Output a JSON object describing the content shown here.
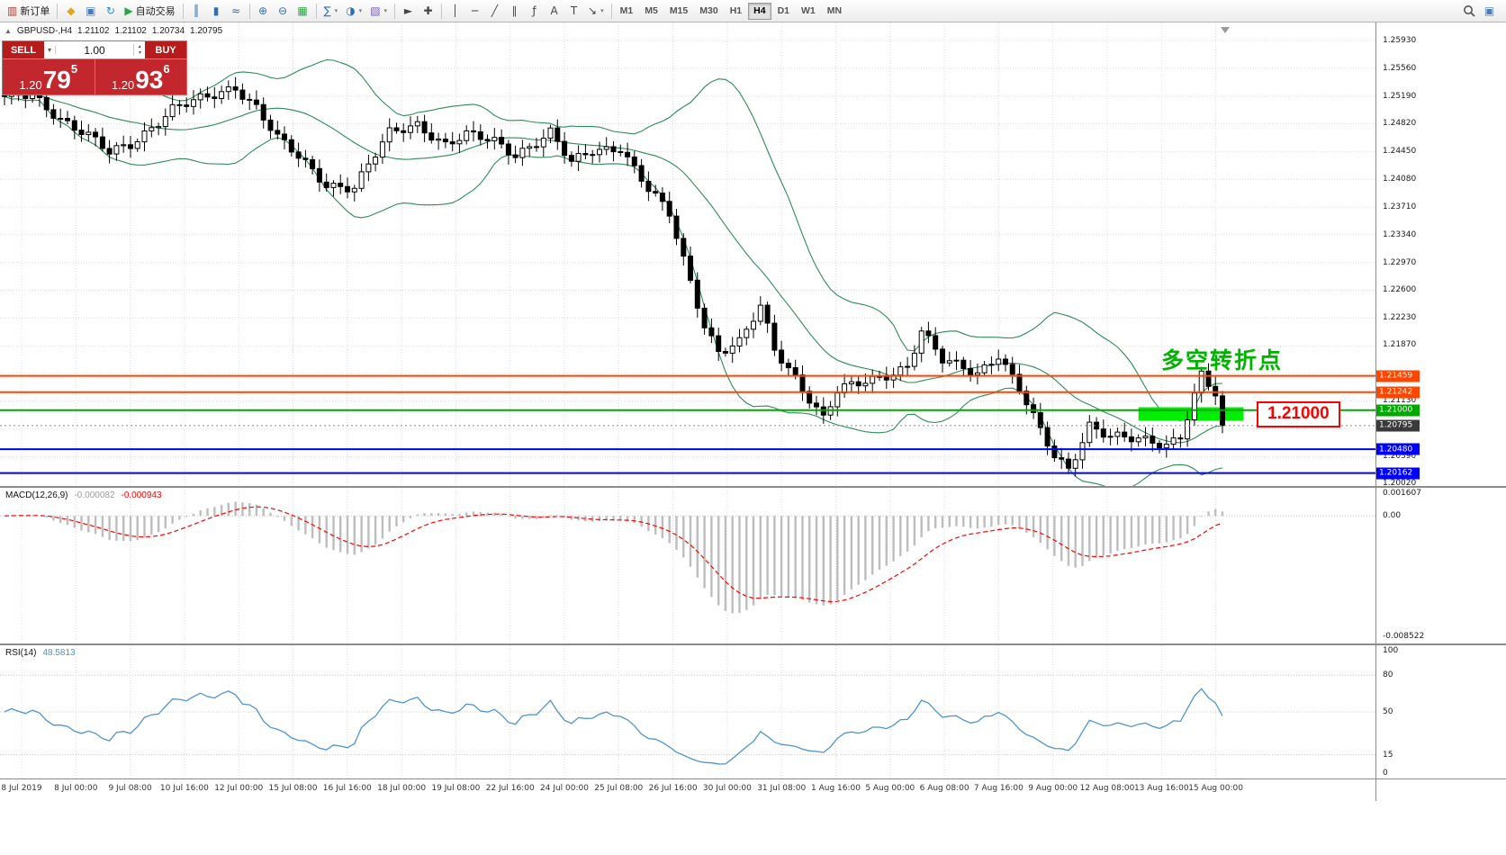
{
  "toolbar": {
    "items": [
      {
        "name": "new-order-button",
        "glyph": "▥",
        "glyph_color": "#B03A2E",
        "label": "新订单"
      },
      {
        "type": "sep"
      },
      {
        "name": "chart-profile-button",
        "glyph": "◆",
        "glyph_color": "#E2A51F"
      },
      {
        "name": "data-window-button",
        "glyph": "▣",
        "glyph_color": "#4A7AB8"
      },
      {
        "name": "refresh-button",
        "glyph": "↻",
        "glyph_color": "#2F86C8"
      },
      {
        "name": "autotrading-button",
        "glyph": "▶",
        "glyph_color": "#27A844",
        "label": "自动交易"
      },
      {
        "type": "sep"
      },
      {
        "name": "bar-chart-button",
        "glyph": "║",
        "glyph_color": "#2F6FB0"
      },
      {
        "name": "candlestick-chart-button",
        "glyph": "▮",
        "glyph_color": "#2F6FB0"
      },
      {
        "name": "line-chart-button",
        "glyph": "≈",
        "glyph_color": "#2F6FB0"
      },
      {
        "type": "sep"
      },
      {
        "name": "zoom-in-button",
        "glyph": "⊕",
        "glyph_color": "#2F6FB0"
      },
      {
        "name": "zoom-out-button",
        "glyph": "⊖",
        "glyph_color": "#2F6FB0"
      },
      {
        "name": "tile-windows-button",
        "glyph": "▦",
        "glyph_color": "#27A844"
      },
      {
        "type": "sep"
      },
      {
        "name": "indicators-button",
        "glyph": "∑",
        "glyph_color": "#2F6FB0",
        "dropdown": true
      },
      {
        "name": "periods-button",
        "glyph": "◑",
        "glyph_color": "#2F6FB0",
        "dropdown": true
      },
      {
        "name": "templates-button",
        "glyph": "▧",
        "glyph_color": "#7E57C2",
        "dropdown": true
      },
      {
        "type": "sep"
      },
      {
        "name": "cursor-button",
        "glyph": "►",
        "glyph_color": "#444444"
      },
      {
        "name": "crosshair-button",
        "glyph": "✚",
        "glyph_color": "#444444"
      },
      {
        "type": "sep"
      },
      {
        "name": "vertical-line-button",
        "glyph": "│",
        "glyph_color": "#444444"
      },
      {
        "name": "horizontal-line-button",
        "glyph": "─",
        "glyph_color": "#444444"
      },
      {
        "name": "trendline-button",
        "glyph": "╱",
        "glyph_color": "#444444"
      },
      {
        "name": "equidistant-channel-button",
        "glyph": "∥",
        "glyph_color": "#444444"
      },
      {
        "name": "fibonacci-button",
        "glyph": "ƒ",
        "glyph_color": "#444444"
      },
      {
        "name": "text-button",
        "glyph": "A",
        "glyph_color": "#444444"
      },
      {
        "name": "text-label-button",
        "glyph": "T",
        "glyph_color": "#444444"
      },
      {
        "name": "arrows-button",
        "glyph": "↘",
        "glyph_color": "#444444",
        "dropdown": true
      },
      {
        "type": "sep"
      }
    ],
    "timeframes": [
      "M1",
      "M5",
      "M15",
      "M30",
      "H1",
      "H4",
      "D1",
      "W1",
      "MN"
    ],
    "active_timeframe": "H4"
  },
  "chart_header": {
    "collapse_icon": "▲",
    "symbol": "GBPUSD-,H4",
    "open": "1.21102",
    "high": "1.21102",
    "low": "1.20734",
    "close": "1.20795"
  },
  "trade_panel": {
    "sell_label": "SELL",
    "buy_label": "BUY",
    "volume": "1.00",
    "sell_price_head": "1.20",
    "sell_price_big": "79",
    "sell_price_pip": "5",
    "buy_price_head": "1.20",
    "buy_price_big": "93",
    "buy_price_pip": "6"
  },
  "chart_data": {
    "type": "candlestick",
    "symbol": "GBPUSD-",
    "timeframe": "H4",
    "y_axis": {
      "visible_min": 1.2002,
      "visible_max": 1.2593,
      "tick_step": 0.0037,
      "tick_labels": [
        "1.25930",
        "1.25560",
        "1.25190",
        "1.24820",
        "1.24450",
        "1.24080",
        "1.23710",
        "1.23340",
        "1.22970",
        "1.22600",
        "1.22230",
        "1.21870",
        "1.21130",
        "1.20390",
        "1.20020"
      ]
    },
    "x_tick_labels": [
      "8 Jul 2019",
      "8 Jul 00:00",
      "9 Jul 08:00",
      "10 Jul 16:00",
      "12 Jul 00:00",
      "15 Jul 08:00",
      "16 Jul 16:00",
      "18 Jul 00:00",
      "19 Jul 08:00",
      "22 Jul 16:00",
      "24 Jul 00:00",
      "25 Jul 08:00",
      "26 Jul 16:00",
      "30 Jul 00:00",
      "31 Jul 08:00",
      "1 Aug 16:00",
      "5 Aug 00:00",
      "6 Aug 08:00",
      "7 Aug 16:00",
      "9 Aug 00:00",
      "12 Aug 08:00",
      "13 Aug 16:00",
      "15 Aug 00:00"
    ],
    "candle_count": 175,
    "price_keypoints": [
      [
        0,
        1.2515
      ],
      [
        4,
        1.2521
      ],
      [
        8,
        1.249
      ],
      [
        12,
        1.2465
      ],
      [
        15,
        1.2442
      ],
      [
        18,
        1.2455
      ],
      [
        24,
        1.2502
      ],
      [
        29,
        1.2516
      ],
      [
        33,
        1.2532
      ],
      [
        36,
        1.2505
      ],
      [
        39,
        1.2462
      ],
      [
        43,
        1.2428
      ],
      [
        46,
        1.2402
      ],
      [
        50,
        1.2398
      ],
      [
        55,
        1.2468
      ],
      [
        59,
        1.2482
      ],
      [
        63,
        1.2455
      ],
      [
        66,
        1.2466
      ],
      [
        70,
        1.2458
      ],
      [
        73,
        1.2442
      ],
      [
        78,
        1.247
      ],
      [
        81,
        1.2428
      ],
      [
        84,
        1.2446
      ],
      [
        88,
        1.2452
      ],
      [
        92,
        1.2394
      ],
      [
        95,
        1.236
      ],
      [
        97,
        1.23
      ],
      [
        100,
        1.2215
      ],
      [
        102,
        1.218
      ],
      [
        105,
        1.219
      ],
      [
        108,
        1.2236
      ],
      [
        110,
        1.218
      ],
      [
        113,
        1.2145
      ],
      [
        117,
        1.209
      ],
      [
        119,
        1.2125
      ],
      [
        124,
        1.214
      ],
      [
        129,
        1.216
      ],
      [
        131,
        1.2206
      ],
      [
        134,
        1.2165
      ],
      [
        139,
        1.215
      ],
      [
        142,
        1.2176
      ],
      [
        145,
        1.2128
      ],
      [
        148,
        1.207
      ],
      [
        150,
        1.2038
      ],
      [
        152,
        1.2022
      ],
      [
        155,
        1.2082
      ],
      [
        158,
        1.2065
      ],
      [
        161,
        1.206
      ],
      [
        166,
        1.2055
      ],
      [
        168,
        1.2068
      ],
      [
        171,
        1.2148
      ],
      [
        173,
        1.212
      ],
      [
        174,
        1.20795
      ]
    ],
    "bollinger": {
      "period": 20,
      "deviation": 2,
      "color": "#2E8B57"
    },
    "horizontal_lines": [
      {
        "price": 1.21459,
        "label": "1.21459",
        "color": "#FF4500"
      },
      {
        "price": 1.21242,
        "label": "1.21242",
        "color": "#FF4500"
      },
      {
        "price": 1.21,
        "label": "1.21000",
        "color": "#00A800"
      },
      {
        "price": 1.2048,
        "label": "1.20480",
        "color": "#0000FF"
      },
      {
        "price": 1.20162,
        "label": "1.20162",
        "color": "#0000FF"
      }
    ],
    "current_price": {
      "value": 1.20795,
      "label": "1.20795",
      "tag_color": "#3A3A3A"
    },
    "highlight_rect": {
      "start_index": 162,
      "end_index": 177,
      "price_top": 1.2104,
      "price_bottom": 1.2086,
      "color": "#00EE00"
    },
    "annotation": {
      "text": "多空转折点",
      "color": "#00B300"
    },
    "callout": {
      "text": "1.21000",
      "color": "#FF0000"
    },
    "macd": {
      "label": "MACD(12,26,9)",
      "fast": 12,
      "slow": 26,
      "signal": 9,
      "value": "-0.000082",
      "signal_value": "-0.000943",
      "axis_labels": [
        "0.001607",
        "0.00",
        "-0.008522"
      ],
      "hist_color": "#BDBDBD",
      "signal_color": "#FF0000"
    },
    "rsi": {
      "label": "RSI(14)",
      "period": 14,
      "value": "48.5813",
      "axis_labels": [
        "100",
        "80",
        "50",
        "15",
        "0"
      ],
      "levels": [
        80,
        50,
        15
      ],
      "line_color": "#4F94CD"
    }
  },
  "colors": {
    "grid": "#DCDCDC",
    "candle_up_fill": "#FFFFFF",
    "candle_down_fill": "#000000",
    "candle_outline": "#000000",
    "background": "#FFFFFF"
  }
}
